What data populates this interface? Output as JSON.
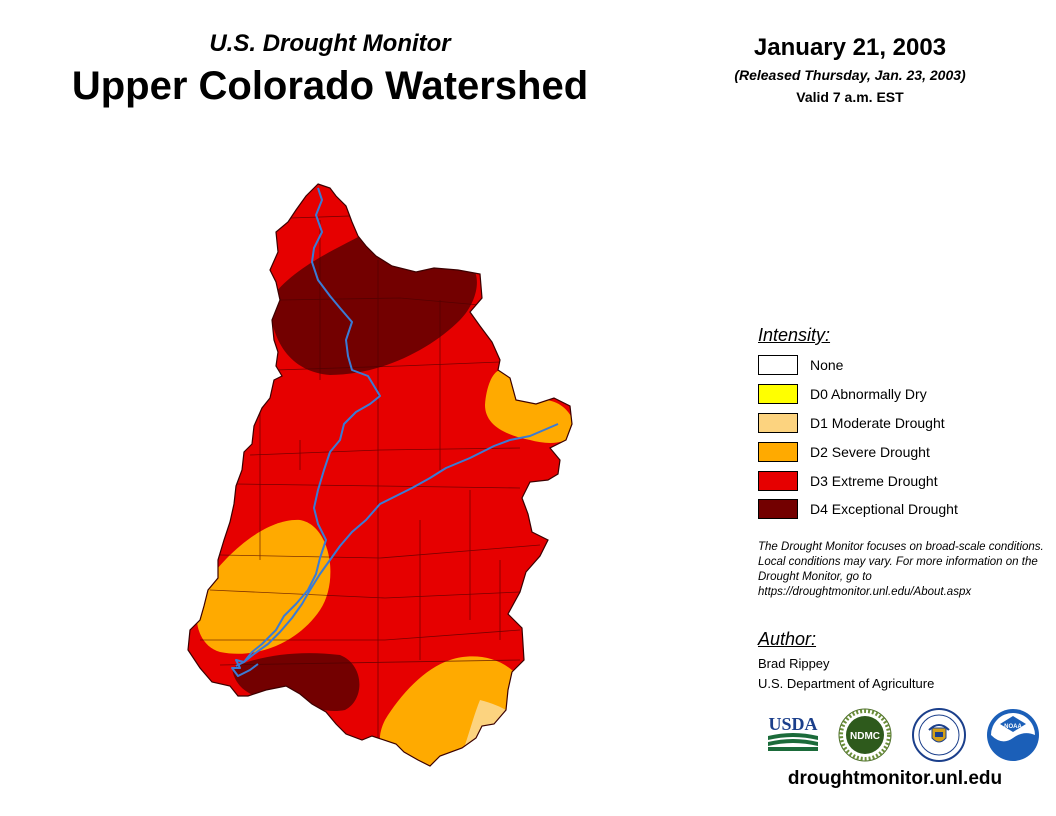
{
  "header": {
    "subtitle": "U.S. Drought Monitor",
    "title": "Upper Colorado Watershed",
    "date": "January 21, 2003",
    "released": "(Released Thursday, Jan. 23, 2003)",
    "valid": "Valid 7 a.m. EST"
  },
  "legend": {
    "heading": "Intensity:",
    "items": [
      {
        "label": "None",
        "color": "#ffffff"
      },
      {
        "label": "D0 Abnormally Dry",
        "color": "#ffff00"
      },
      {
        "label": "D1 Moderate Drought",
        "color": "#fcd37f"
      },
      {
        "label": "D2 Severe Drought",
        "color": "#ffaa00"
      },
      {
        "label": "D3 Extreme Drought",
        "color": "#e60000"
      },
      {
        "label": "D4 Exceptional Drought",
        "color": "#730000"
      }
    ]
  },
  "note": "The Drought Monitor focuses on broad-scale conditions. Local conditions may vary. For more information on the Drought Monitor, go to https://droughtmonitor.unl.edu/About.aspx",
  "author": {
    "heading": "Author:",
    "name": "Brad Rippey",
    "org": "U.S. Department of Agriculture"
  },
  "logos": {
    "usda": "USDA",
    "ndmc": "NDMC",
    "noaa": "NOAA"
  },
  "footer_url": "droughtmonitor.unl.edu",
  "map_colors": {
    "d1": "#fcd37f",
    "d2": "#ffaa00",
    "d3": "#e60000",
    "d4": "#730000",
    "river": "#3a7bd5"
  }
}
